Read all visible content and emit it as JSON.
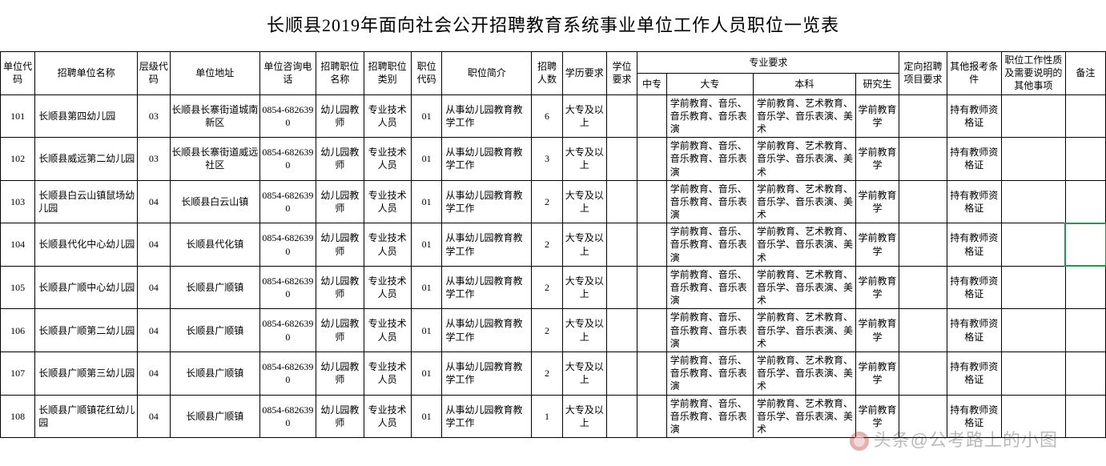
{
  "title": "长顺县2019年面向社会公开招聘教育系统事业单位工作人员职位一览表",
  "watermark": "头条@公考路上的小图",
  "table": {
    "header": {
      "unit_code": "单位代码",
      "unit_name": "招聘单位名称",
      "level_code": "层级代码",
      "unit_addr": "单位地址",
      "phone": "单位咨询电话",
      "pos_name": "招聘职位名称",
      "pos_type": "招聘职位类别",
      "pos_code": "职位代码",
      "pos_desc": "职位简介",
      "count": "招聘人数",
      "edu": "学历要求",
      "degree": "学位要求",
      "major_group": "专业要求",
      "major_zz": "中专",
      "major_dz": "大专",
      "major_bk": "本科",
      "major_yjs": "研究生",
      "dingxiang": "定向招聘项目要求",
      "other_cond": "其他报考条件",
      "pos_nature": "职位工作性质及需要说明的其他事项",
      "remark": "备注"
    },
    "rows": [
      {
        "unit_code": "101",
        "unit_name": "长顺县第四幼儿园",
        "level_code": "03",
        "unit_addr": "长顺县长寨街道城南新区",
        "phone": "0854-6826390",
        "pos_name": "幼儿园教师",
        "pos_type": "专业技术人员",
        "pos_code": "01",
        "pos_desc": "从事幼儿园教育教学工作",
        "count": "6",
        "edu": "大专及以上",
        "degree": "",
        "major_zz": "",
        "major_dz": "学前教育、音乐、音乐教育、音乐表演",
        "major_bk": "学前教育、艺术教育、音乐学、音乐表演、美术",
        "major_yjs": "学前教育学",
        "dingxiang": "",
        "other_cond": "持有教师资格证",
        "pos_nature": "",
        "remark": ""
      },
      {
        "unit_code": "102",
        "unit_name": "长顺县威远第二幼儿园",
        "level_code": "03",
        "unit_addr": "长顺县长寨街道威远社区",
        "phone": "0854-6826390",
        "pos_name": "幼儿园教师",
        "pos_type": "专业技术人员",
        "pos_code": "01",
        "pos_desc": "从事幼儿园教育教学工作",
        "count": "3",
        "edu": "大专及以上",
        "degree": "",
        "major_zz": "",
        "major_dz": "学前教育、音乐、音乐教育、音乐表演",
        "major_bk": "学前教育、艺术教育、音乐学、音乐表演、美术",
        "major_yjs": "学前教育学",
        "dingxiang": "",
        "other_cond": "持有教师资格证",
        "pos_nature": "",
        "remark": ""
      },
      {
        "unit_code": "103",
        "unit_name": "长顺县白云山镇鼠场幼儿园",
        "level_code": "04",
        "unit_addr": "长顺县白云山镇",
        "phone": "0854-6826390",
        "pos_name": "幼儿园教师",
        "pos_type": "专业技术人员",
        "pos_code": "01",
        "pos_desc": "从事幼儿园教育教学工作",
        "count": "2",
        "edu": "大专及以上",
        "degree": "",
        "major_zz": "",
        "major_dz": "学前教育、音乐、音乐教育、音乐表演",
        "major_bk": "学前教育、艺术教育、音乐学、音乐表演、美术",
        "major_yjs": "学前教育学",
        "dingxiang": "",
        "other_cond": "持有教师资格证",
        "pos_nature": "",
        "remark": ""
      },
      {
        "unit_code": "104",
        "unit_name": "长顺县代化中心幼儿园",
        "level_code": "04",
        "unit_addr": "长顺县代化镇",
        "phone": "0854-6826390",
        "pos_name": "幼儿园教师",
        "pos_type": "专业技术人员",
        "pos_code": "01",
        "pos_desc": "从事幼儿园教育教学工作",
        "count": "2",
        "edu": "大专及以上",
        "degree": "",
        "major_zz": "",
        "major_dz": "学前教育、音乐、音乐教育、音乐表演",
        "major_bk": "学前教育、艺术教育、音乐学、音乐表演、美术",
        "major_yjs": "学前教育学",
        "dingxiang": "",
        "other_cond": "持有教师资格证",
        "pos_nature": "",
        "remark": "",
        "selected": true
      },
      {
        "unit_code": "105",
        "unit_name": "长顺县广顺中心幼儿园",
        "level_code": "04",
        "unit_addr": "长顺县广顺镇",
        "phone": "0854-6826390",
        "pos_name": "幼儿园教师",
        "pos_type": "专业技术人员",
        "pos_code": "01",
        "pos_desc": "从事幼儿园教育教学工作",
        "count": "2",
        "edu": "大专及以上",
        "degree": "",
        "major_zz": "",
        "major_dz": "学前教育、音乐、音乐教育、音乐表演",
        "major_bk": "学前教育、艺术教育、音乐学、音乐表演、美术",
        "major_yjs": "学前教育学",
        "dingxiang": "",
        "other_cond": "持有教师资格证",
        "pos_nature": "",
        "remark": ""
      },
      {
        "unit_code": "106",
        "unit_name": "长顺县广顺第二幼儿园",
        "level_code": "04",
        "unit_addr": "长顺县广顺镇",
        "phone": "0854-6826390",
        "pos_name": "幼儿园教师",
        "pos_type": "专业技术人员",
        "pos_code": "01",
        "pos_desc": "从事幼儿园教育教学工作",
        "count": "2",
        "edu": "大专及以上",
        "degree": "",
        "major_zz": "",
        "major_dz": "学前教育、音乐、音乐教育、音乐表演",
        "major_bk": "学前教育、艺术教育、音乐学、音乐表演、美术",
        "major_yjs": "学前教育学",
        "dingxiang": "",
        "other_cond": "持有教师资格证",
        "pos_nature": "",
        "remark": ""
      },
      {
        "unit_code": "107",
        "unit_name": "长顺县广顺第三幼儿园",
        "level_code": "04",
        "unit_addr": "长顺县广顺镇",
        "phone": "0854-6826390",
        "pos_name": "幼儿园教师",
        "pos_type": "专业技术人员",
        "pos_code": "01",
        "pos_desc": "从事幼儿园教育教学工作",
        "count": "2",
        "edu": "大专及以上",
        "degree": "",
        "major_zz": "",
        "major_dz": "学前教育、音乐、音乐教育、音乐表演",
        "major_bk": "学前教育、艺术教育、音乐学、音乐表演、美术",
        "major_yjs": "学前教育学",
        "dingxiang": "",
        "other_cond": "持有教师资格证",
        "pos_nature": "",
        "remark": ""
      },
      {
        "unit_code": "108",
        "unit_name": "长顺县广顺镇花红幼儿园",
        "level_code": "04",
        "unit_addr": "长顺县广顺镇",
        "phone": "0854-6826390",
        "pos_name": "幼儿园教师",
        "pos_type": "专业技术人员",
        "pos_code": "01",
        "pos_desc": "从事幼儿园教育教学工作",
        "count": "1",
        "edu": "大专及以上",
        "degree": "",
        "major_zz": "",
        "major_dz": "学前教育、音乐、音乐教育、音乐表演",
        "major_bk": "学前教育、艺术教育、音乐学、音乐表演、美术",
        "major_yjs": "学前教育学",
        "dingxiang": "",
        "other_cond": "持有教师资格证",
        "pos_nature": "",
        "remark": ""
      }
    ]
  },
  "style": {
    "title_fontsize": 22,
    "cell_fontsize": 12,
    "border_color": "#000000",
    "background_color": "#ffffff",
    "selection_color": "#1a9850"
  }
}
